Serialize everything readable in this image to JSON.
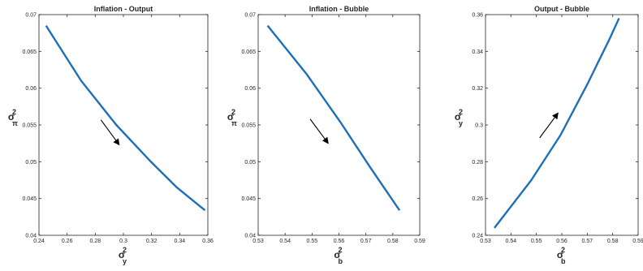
{
  "chart_data": [
    {
      "type": "line",
      "title": "Inflation - Output",
      "xlabel": {
        "symbol": "σ",
        "sub": "y",
        "sup": "2"
      },
      "ylabel": {
        "symbol": "σ",
        "sub": "π",
        "sup": "2"
      },
      "xlim": [
        0.24,
        0.36
      ],
      "ylim": [
        0.04,
        0.07
      ],
      "xticks": [
        0.24,
        0.26,
        0.28,
        0.3,
        0.32,
        0.34,
        0.36
      ],
      "xtick_labels": [
        "0.24",
        "0.26",
        "0.28",
        "0.3",
        "0.32",
        "0.34",
        "0.36"
      ],
      "yticks": [
        0.04,
        0.045,
        0.05,
        0.055,
        0.06,
        0.065,
        0.07
      ],
      "ytick_labels": [
        "0.04",
        "0.045",
        "0.05",
        "0.055",
        "0.06",
        "0.065",
        "0.07"
      ],
      "x": [
        0.245,
        0.27,
        0.295,
        0.318,
        0.338,
        0.358
      ],
      "y": [
        0.0685,
        0.061,
        0.055,
        0.0503,
        0.0465,
        0.0434
      ],
      "arrow": {
        "from": [
          0.284,
          0.0557
        ],
        "to": [
          0.297,
          0.0523
        ]
      },
      "color": "#1f6fb8"
    },
    {
      "type": "line",
      "title": "Inflation - Bubble",
      "xlabel": {
        "symbol": "σ",
        "sub": "b",
        "sup": "2"
      },
      "ylabel": {
        "symbol": "σ",
        "sub": "π",
        "sup": "2"
      },
      "xlim": [
        0.53,
        0.59
      ],
      "ylim": [
        0.04,
        0.07
      ],
      "xticks": [
        0.53,
        0.54,
        0.55,
        0.56,
        0.57,
        0.58,
        0.59
      ],
      "xtick_labels": [
        "0.53",
        "0.54",
        "0.55",
        "0.56",
        "0.57",
        "0.58",
        "0.59"
      ],
      "yticks": [
        0.04,
        0.045,
        0.05,
        0.055,
        0.06,
        0.065,
        0.07
      ],
      "ytick_labels": [
        "0.04",
        "0.045",
        "0.05",
        "0.055",
        "0.06",
        "0.065",
        "0.07"
      ],
      "x": [
        0.5335,
        0.548,
        0.5605,
        0.5715,
        0.5825
      ],
      "y": [
        0.0685,
        0.0619,
        0.0554,
        0.0493,
        0.0434
      ],
      "arrow": {
        "from": [
          0.5493,
          0.0558
        ],
        "to": [
          0.556,
          0.0525
        ]
      },
      "color": "#1f6fb8"
    },
    {
      "type": "line",
      "title": "Output - Bubble",
      "xlabel": {
        "symbol": "σ",
        "sub": "b",
        "sup": "2"
      },
      "ylabel": {
        "symbol": "σ",
        "sub": "y",
        "sup": "2"
      },
      "xlim": [
        0.53,
        0.59
      ],
      "ylim": [
        0.24,
        0.36
      ],
      "xticks": [
        0.53,
        0.54,
        0.55,
        0.56,
        0.57,
        0.58,
        0.59
      ],
      "xtick_labels": [
        "0.53",
        "0.54",
        "0.55",
        "0.56",
        "0.57",
        "0.58",
        "0.59"
      ],
      "yticks": [
        0.24,
        0.26,
        0.28,
        0.3,
        0.32,
        0.34,
        0.36
      ],
      "ytick_labels": [
        "0.24",
        "0.26",
        "0.28",
        "0.3",
        "0.32",
        "0.34",
        "0.36"
      ],
      "x": [
        0.5335,
        0.548,
        0.5595,
        0.57,
        0.5785,
        0.5825
      ],
      "y": [
        0.244,
        0.27,
        0.2945,
        0.322,
        0.346,
        0.358
      ],
      "arrow": {
        "from": [
          0.5513,
          0.293
        ],
        "to": [
          0.5585,
          0.3065
        ]
      },
      "color": "#1f6fb8"
    }
  ]
}
